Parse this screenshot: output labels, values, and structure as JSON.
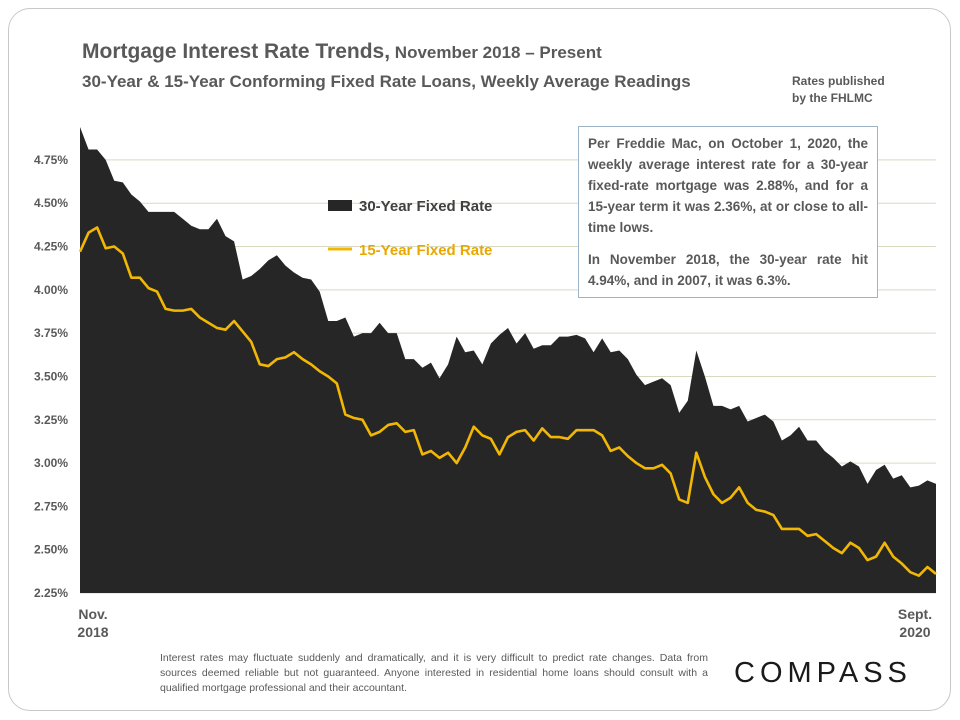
{
  "header": {
    "title_main": "Mortgage Interest Rate Trends,",
    "title_sub": " November 2018 – Present",
    "subtitle": "30-Year & 15-Year Conforming  Fixed Rate Loans, Weekly Average Readings",
    "source_line1": "Rates published",
    "source_line2": "by the FHLMC"
  },
  "annotation": {
    "para1": "Per Freddie Mac, on October 1, 2020, the weekly average interest rate for a 30-year fixed-rate mortgage was 2.88%, and for a 15-year term it was 2.36%, at or close to all-time lows.",
    "para2": "In November 2018, the 30-year rate hit 4.94%, and in 2007, it was 6.3%."
  },
  "disclaimer": "Interest rates may fluctuate suddenly and dramatically, and it is very difficult to predict rate changes. Data from sources deemed reliable but not guaranteed. Anyone interested in residential home loans should consult with a qualified mortgage professional and their accountant.",
  "logo": "COMPASS",
  "colors": {
    "series_30": "#262626",
    "series_15": "#f2b705",
    "grid": "#d9d9c0"
  },
  "chart_data": {
    "type": "area",
    "title": "Mortgage Interest Rate Trends, November 2018 – Present",
    "subtitle": "30-Year & 15-Year Conforming  Fixed Rate Loans, Weekly Average Readings",
    "ylim": [
      2.25,
      4.94
    ],
    "y_ticks": [
      2.25,
      2.5,
      2.75,
      3.0,
      3.25,
      3.5,
      3.75,
      4.0,
      4.25,
      4.5,
      4.75
    ],
    "y_tick_labels": [
      "2.25%",
      "2.50%",
      "2.75%",
      "3.00%",
      "3.25%",
      "3.50%",
      "3.75%",
      "4.00%",
      "4.25%",
      "4.50%",
      "4.75%"
    ],
    "x_start_label": [
      "Nov.",
      "2018"
    ],
    "x_end_label": [
      "Sept.",
      "2020"
    ],
    "grid": true,
    "legend_position": "top-left",
    "series": [
      {
        "name": "30-Year Fixed Rate",
        "type": "area",
        "values": [
          4.94,
          4.81,
          4.81,
          4.75,
          4.63,
          4.62,
          4.55,
          4.51,
          4.45,
          4.45,
          4.45,
          4.45,
          4.41,
          4.37,
          4.35,
          4.35,
          4.41,
          4.31,
          4.28,
          4.06,
          4.08,
          4.12,
          4.17,
          4.2,
          4.14,
          4.1,
          4.07,
          4.06,
          3.99,
          3.82,
          3.82,
          3.84,
          3.73,
          3.75,
          3.75,
          3.81,
          3.75,
          3.75,
          3.6,
          3.6,
          3.55,
          3.58,
          3.49,
          3.57,
          3.73,
          3.64,
          3.65,
          3.57,
          3.69,
          3.74,
          3.78,
          3.69,
          3.75,
          3.66,
          3.68,
          3.68,
          3.73,
          3.73,
          3.74,
          3.72,
          3.64,
          3.72,
          3.64,
          3.65,
          3.6,
          3.51,
          3.45,
          3.47,
          3.49,
          3.45,
          3.29,
          3.36,
          3.65,
          3.5,
          3.33,
          3.33,
          3.31,
          3.33,
          3.24,
          3.26,
          3.28,
          3.24,
          3.13,
          3.16,
          3.21,
          3.13,
          3.13,
          3.07,
          3.03,
          2.98,
          3.01,
          2.98,
          2.88,
          2.96,
          2.99,
          2.91,
          2.93,
          2.86,
          2.87,
          2.9,
          2.88
        ]
      },
      {
        "name": "15-Year Fixed Rate",
        "type": "line",
        "values": [
          4.22,
          4.33,
          4.36,
          4.24,
          4.25,
          4.21,
          4.07,
          4.07,
          4.01,
          3.99,
          3.89,
          3.88,
          3.88,
          3.89,
          3.84,
          3.81,
          3.78,
          3.77,
          3.82,
          3.76,
          3.7,
          3.57,
          3.56,
          3.6,
          3.61,
          3.64,
          3.6,
          3.57,
          3.53,
          3.5,
          3.46,
          3.28,
          3.26,
          3.25,
          3.16,
          3.18,
          3.22,
          3.23,
          3.18,
          3.19,
          3.05,
          3.07,
          3.03,
          3.06,
          3.0,
          3.09,
          3.21,
          3.16,
          3.14,
          3.05,
          3.15,
          3.18,
          3.19,
          3.13,
          3.2,
          3.15,
          3.15,
          3.14,
          3.19,
          3.19,
          3.19,
          3.16,
          3.07,
          3.09,
          3.04,
          3.0,
          2.97,
          2.97,
          2.99,
          2.94,
          2.79,
          2.77,
          3.06,
          2.92,
          2.82,
          2.77,
          2.8,
          2.86,
          2.77,
          2.73,
          2.72,
          2.7,
          2.62,
          2.62,
          2.62,
          2.58,
          2.59,
          2.55,
          2.51,
          2.48,
          2.54,
          2.51,
          2.44,
          2.46,
          2.54,
          2.46,
          2.42,
          2.37,
          2.35,
          2.4,
          2.36
        ]
      }
    ]
  }
}
